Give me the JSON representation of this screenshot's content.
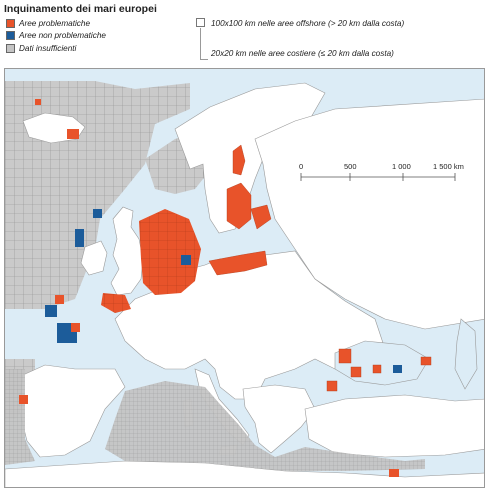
{
  "title": "Inquinamento dei mari europei",
  "legend": {
    "problem_label": "Aree problematiche",
    "nonproblem_label": "Aree non problematiche",
    "insufficient_label": "Dati insufficienti",
    "offshore_label": "100x100 km nelle aree offshore (> 20 km dalla costa)",
    "coastal_label": "20x20 km nelle aree costiere (≤ 20 km dalla costa)"
  },
  "scale": {
    "ticks": [
      "0",
      "500",
      "1 000",
      "1 500 km"
    ]
  },
  "colors": {
    "problem": "#e8532a",
    "nonproblem": "#1c5c9a",
    "insufficient": "#c4c4c4",
    "sea": "#dcecf6",
    "land": "#ffffff",
    "border": "#bfbfbf"
  }
}
